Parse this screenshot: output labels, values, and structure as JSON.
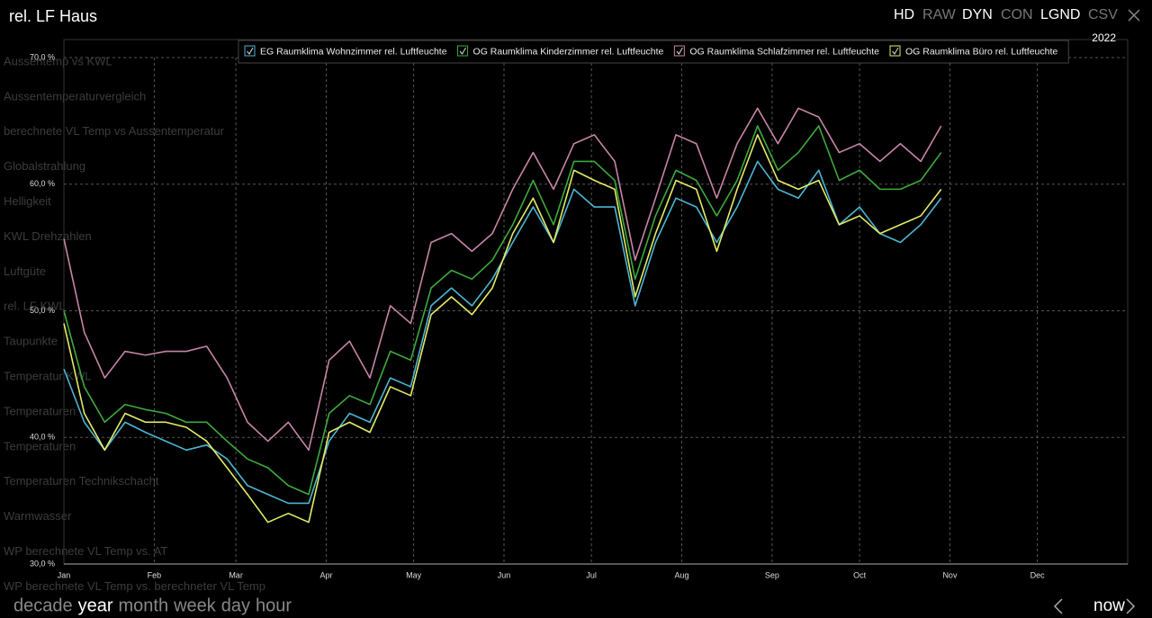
{
  "header": {
    "title": "rel. LF Haus",
    "buttons": [
      {
        "label": "HD",
        "active": true
      },
      {
        "label": "RAW",
        "active": false
      },
      {
        "label": "DYN",
        "active": true
      },
      {
        "label": "CON",
        "active": false
      },
      {
        "label": "LGND",
        "active": true
      },
      {
        "label": "CSV",
        "active": false
      }
    ],
    "year": "2022"
  },
  "menu": [
    "Aussentemp vs KWL",
    "Aussentemperaturvergleich",
    "berechnete VL Temp vs Aussentemperatur",
    "Globalstrahlung",
    "Helligkeit",
    "KWL Drehzahlen",
    "Luftgüte",
    "rel. LF KWL",
    "Taupunkte",
    "Temperatur KWL",
    "Temperaturen",
    "Temperaturen",
    "Temperaturen Technikschacht",
    "Warmwasser",
    "WP berechnete VL Temp vs. AT",
    "WP berechnete VL Temp vs. berechneter VL Temp"
  ],
  "chart_data": {
    "type": "line",
    "xlim": [
      0,
      365
    ],
    "xticks": [
      {
        "value": 0,
        "label": "Jan"
      },
      {
        "value": 31,
        "label": "Feb"
      },
      {
        "value": 59,
        "label": "Mar"
      },
      {
        "value": 90,
        "label": "Apr"
      },
      {
        "value": 120,
        "label": "May"
      },
      {
        "value": 151,
        "label": "Jun"
      },
      {
        "value": 181,
        "label": "Jul"
      },
      {
        "value": 212,
        "label": "Aug"
      },
      {
        "value": 243,
        "label": "Sep"
      },
      {
        "value": 273,
        "label": "Oct"
      },
      {
        "value": 304,
        "label": "Nov"
      },
      {
        "value": 334,
        "label": "Dec"
      }
    ],
    "ylim": [
      30,
      70
    ],
    "yticks": [
      {
        "value": 30,
        "label": "30,0 %"
      },
      {
        "value": 40,
        "label": "40,0 %"
      },
      {
        "value": 50,
        "label": "50,0 %"
      },
      {
        "value": 60,
        "label": "60,0 %"
      },
      {
        "value": 70,
        "label": "70,0 %"
      }
    ],
    "grid": true,
    "x": [
      0,
      7,
      14,
      21,
      28,
      35,
      42,
      49,
      56,
      63,
      70,
      77,
      84,
      91,
      98,
      105,
      112,
      119,
      126,
      133,
      140,
      147,
      154,
      161,
      168,
      175,
      182,
      189,
      196,
      203,
      210,
      217,
      224,
      231,
      238,
      245,
      252,
      259,
      266,
      273,
      280,
      287,
      294,
      301
    ],
    "series": [
      {
        "name": "EG Raumklima Wohnzimmer rel. Luftfeuchte",
        "color": "#4cb6d4",
        "values": [
          45.4,
          41.2,
          39,
          41.2,
          40.4,
          39.7,
          39,
          39.4,
          38.3,
          36.2,
          35.5,
          34.8,
          34.8,
          39.7,
          41.9,
          41.2,
          44.7,
          44,
          50.4,
          51.8,
          50.4,
          52.5,
          55.4,
          58.2,
          55.4,
          59.6,
          58.2,
          58.2,
          50.4,
          55.4,
          58.9,
          58.2,
          55.4,
          58.2,
          61.8,
          59.6,
          58.9,
          61.1,
          56.8,
          58.2,
          56.1,
          55.4,
          56.8,
          58.9
        ]
      },
      {
        "name": "OG Raumklima Kinderzimmer rel. Luftfeuchte",
        "color": "#3daa3d",
        "values": [
          50,
          44,
          41.2,
          42.6,
          42.2,
          41.9,
          41.2,
          41.2,
          39.7,
          38.3,
          37.6,
          36.2,
          35.5,
          41.9,
          43.3,
          42.6,
          46.8,
          46.1,
          51.8,
          53.2,
          52.5,
          54,
          56.8,
          60.3,
          56.8,
          61.8,
          61.8,
          60.3,
          52.5,
          57.5,
          61.1,
          60.3,
          57.5,
          60.3,
          64.6,
          61.1,
          62.5,
          64.6,
          60.3,
          61.1,
          59.6,
          59.6,
          60.3,
          62.5
        ]
      },
      {
        "name": "OG Raumklima Schlafzimmer rel. Luftfeuchte",
        "color": "#c684a8",
        "values": [
          55.7,
          48.3,
          44.7,
          46.8,
          46.5,
          46.8,
          46.8,
          47.2,
          44.7,
          41.2,
          39.7,
          41.2,
          39,
          46.1,
          47.6,
          44.7,
          50.4,
          49,
          55.4,
          56.1,
          54.7,
          56.1,
          59.6,
          62.5,
          59.6,
          63.2,
          63.9,
          61.8,
          54,
          58.9,
          63.9,
          63.2,
          58.9,
          63.2,
          66,
          63.2,
          66,
          65.3,
          62.5,
          63.2,
          61.8,
          63.2,
          61.8,
          64.6
        ]
      },
      {
        "name": "OG Raumklima Büro rel. Luftfeuchte",
        "color": "#e4ec66",
        "values": [
          49,
          41.9,
          39,
          41.9,
          41.2,
          41.2,
          40.8,
          39.7,
          37.6,
          35.5,
          33.3,
          34,
          33.3,
          40.4,
          41.2,
          40.4,
          44,
          43.3,
          49.7,
          51.1,
          49.7,
          51.8,
          56.1,
          58.9,
          55.4,
          61.1,
          60.3,
          59.6,
          51.1,
          56.1,
          60.3,
          59.6,
          54.7,
          59.6,
          63.9,
          60.3,
          59.6,
          60.3,
          56.8,
          57.5,
          56.1,
          56.8,
          57.5,
          59.6
        ]
      }
    ]
  },
  "footer": {
    "ranges": [
      {
        "label": "decade",
        "active": false
      },
      {
        "label": "year",
        "active": true
      },
      {
        "label": "month",
        "active": false
      },
      {
        "label": "week",
        "active": false
      },
      {
        "label": "day",
        "active": false
      },
      {
        "label": "hour",
        "active": false
      }
    ],
    "now": "now"
  }
}
